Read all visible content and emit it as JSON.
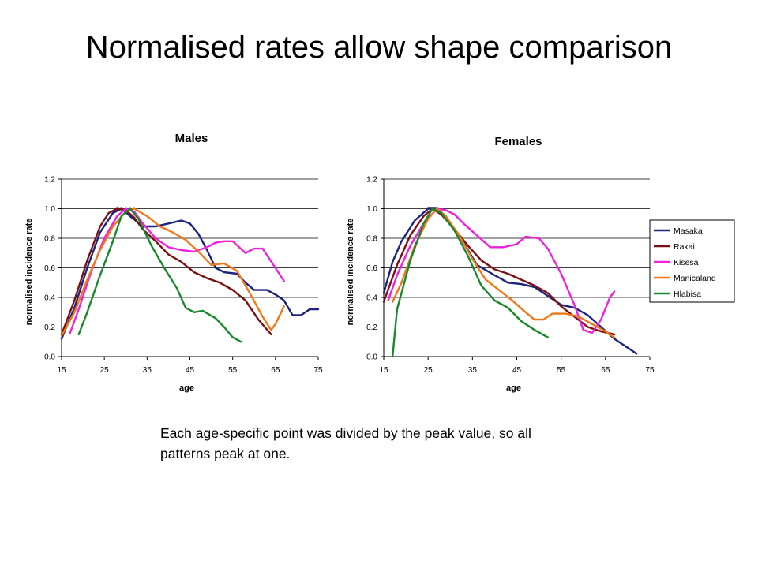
{
  "slide": {
    "title": "Normalised rates allow shape comparison",
    "caption": "Each age-specific point was divided by the peak value, so all patterns peak at one."
  },
  "chart_data": [
    {
      "type": "line",
      "title": "Males",
      "xlabel": "age",
      "ylabel": "normalised incidence rate",
      "xlim": [
        15,
        75
      ],
      "ylim": [
        0,
        1.2
      ],
      "xticks": [
        15,
        25,
        35,
        45,
        55,
        65,
        75
      ],
      "yticks": [
        0.0,
        0.2,
        0.4,
        0.6,
        0.8,
        1.0,
        1.2
      ],
      "ytick_labels": [
        "0.0",
        "0.2",
        "0.4",
        "0.6",
        "0.8",
        "1.0",
        "1.2"
      ],
      "grid": "horizontal",
      "series": [
        {
          "name": "Masaka",
          "color": "#1a237e",
          "x": [
            15,
            18,
            21,
            24,
            27,
            29,
            31,
            34,
            37,
            40,
            43,
            45,
            47,
            49,
            51,
            53,
            56,
            58,
            60,
            63,
            65,
            67,
            69,
            71,
            73,
            75
          ],
          "y": [
            0.12,
            0.33,
            0.6,
            0.84,
            0.97,
            1.0,
            0.95,
            0.88,
            0.88,
            0.9,
            0.92,
            0.9,
            0.83,
            0.72,
            0.6,
            0.57,
            0.56,
            0.5,
            0.45,
            0.45,
            0.42,
            0.38,
            0.28,
            0.28,
            0.32,
            0.32
          ]
        },
        {
          "name": "Rakai",
          "color": "#7b1010",
          "x": [
            15,
            18,
            21,
            24,
            26,
            28,
            30,
            32,
            34,
            37,
            40,
            43,
            46,
            49,
            52,
            55,
            58,
            61,
            64
          ],
          "y": [
            0.15,
            0.38,
            0.65,
            0.88,
            0.97,
            1.0,
            0.99,
            0.94,
            0.86,
            0.78,
            0.69,
            0.64,
            0.57,
            0.53,
            0.5,
            0.45,
            0.38,
            0.25,
            0.15
          ]
        },
        {
          "name": "Kisesa",
          "color": "#ee22dd",
          "x": [
            17,
            19,
            22,
            25,
            28,
            30,
            32,
            34,
            37,
            40,
            43,
            46,
            49,
            51,
            53,
            55,
            58,
            60,
            62,
            65,
            67
          ],
          "y": [
            0.16,
            0.32,
            0.58,
            0.8,
            0.95,
            1.0,
            0.98,
            0.9,
            0.8,
            0.74,
            0.72,
            0.71,
            0.74,
            0.77,
            0.78,
            0.78,
            0.7,
            0.73,
            0.73,
            0.6,
            0.51
          ]
        },
        {
          "name": "Manicaland",
          "color": "#f07818",
          "x": [
            15,
            18,
            21,
            24,
            27,
            30,
            32,
            35,
            38,
            41,
            44,
            47,
            50,
            53,
            56,
            59,
            62,
            64,
            65,
            67
          ],
          "y": [
            0.14,
            0.3,
            0.52,
            0.72,
            0.88,
            0.98,
            1.0,
            0.95,
            0.88,
            0.84,
            0.79,
            0.71,
            0.62,
            0.63,
            0.58,
            0.43,
            0.27,
            0.18,
            0.22,
            0.34
          ]
        },
        {
          "name": "Hlabisa",
          "color": "#18892e",
          "x": [
            19,
            21,
            24,
            27,
            29,
            31,
            33,
            36,
            39,
            42,
            44,
            46,
            48,
            51,
            53,
            55,
            57
          ],
          "y": [
            0.15,
            0.3,
            0.55,
            0.78,
            0.95,
            1.0,
            0.93,
            0.75,
            0.6,
            0.46,
            0.33,
            0.3,
            0.31,
            0.26,
            0.2,
            0.13,
            0.1
          ]
        }
      ]
    },
    {
      "type": "line",
      "title": "Females",
      "xlabel": "age",
      "ylabel": "normalised incidence rate",
      "xlim": [
        15,
        75
      ],
      "ylim": [
        0,
        1.2
      ],
      "xticks": [
        15,
        25,
        35,
        45,
        55,
        65,
        75
      ],
      "yticks": [
        0.0,
        0.2,
        0.4,
        0.6,
        0.8,
        1.0,
        1.2
      ],
      "ytick_labels": [
        "0.0",
        "0.2",
        "0.4",
        "0.6",
        "0.8",
        "1.0",
        "1.2"
      ],
      "grid": "horizontal",
      "legend": "right",
      "series": [
        {
          "name": "Masaka",
          "color": "#1a237e",
          "x": [
            15,
            17,
            19,
            22,
            25,
            27,
            29,
            31,
            33,
            36,
            40,
            43,
            46,
            49,
            52,
            55,
            58,
            61,
            64,
            67,
            70,
            72
          ],
          "y": [
            0.43,
            0.64,
            0.78,
            0.92,
            1.0,
            1.0,
            0.95,
            0.85,
            0.77,
            0.62,
            0.55,
            0.5,
            0.49,
            0.47,
            0.41,
            0.35,
            0.33,
            0.28,
            0.2,
            0.12,
            0.06,
            0.02
          ]
        },
        {
          "name": "Rakai",
          "color": "#7b1010",
          "x": [
            15,
            18,
            21,
            24,
            26,
            28,
            31,
            34,
            37,
            40,
            43,
            46,
            49,
            52,
            55,
            58,
            61,
            64,
            67
          ],
          "y": [
            0.37,
            0.62,
            0.82,
            0.95,
            1.0,
            0.96,
            0.86,
            0.75,
            0.65,
            0.59,
            0.56,
            0.52,
            0.48,
            0.43,
            0.34,
            0.27,
            0.2,
            0.17,
            0.15
          ]
        },
        {
          "name": "Kisesa",
          "color": "#ee22dd",
          "x": [
            16,
            18,
            21,
            24,
            27,
            29,
            31,
            33,
            36,
            39,
            42,
            45,
            47,
            50,
            52,
            55,
            58,
            60,
            62,
            64,
            66,
            67
          ],
          "y": [
            0.38,
            0.55,
            0.75,
            0.9,
            1.0,
            0.99,
            0.96,
            0.9,
            0.82,
            0.74,
            0.74,
            0.76,
            0.81,
            0.8,
            0.73,
            0.56,
            0.35,
            0.18,
            0.16,
            0.25,
            0.4,
            0.44
          ]
        },
        {
          "name": "Manicaland",
          "color": "#f07818",
          "x": [
            17,
            19,
            22,
            25,
            27,
            29,
            32,
            35,
            38,
            41,
            44,
            47,
            49,
            51,
            53,
            56,
            59,
            62,
            65,
            67
          ],
          "y": [
            0.37,
            0.5,
            0.75,
            0.93,
            1.0,
            0.95,
            0.82,
            0.66,
            0.52,
            0.45,
            0.38,
            0.3,
            0.25,
            0.25,
            0.29,
            0.29,
            0.27,
            0.22,
            0.17,
            0.13
          ]
        },
        {
          "name": "Hlabisa",
          "color": "#18892e",
          "x": [
            17,
            18,
            21,
            24,
            26,
            28,
            31,
            34,
            37,
            40,
            43,
            46,
            49,
            52
          ],
          "y": [
            0.0,
            0.32,
            0.65,
            0.9,
            1.0,
            0.97,
            0.85,
            0.68,
            0.48,
            0.38,
            0.33,
            0.24,
            0.18,
            0.13
          ]
        }
      ]
    }
  ]
}
